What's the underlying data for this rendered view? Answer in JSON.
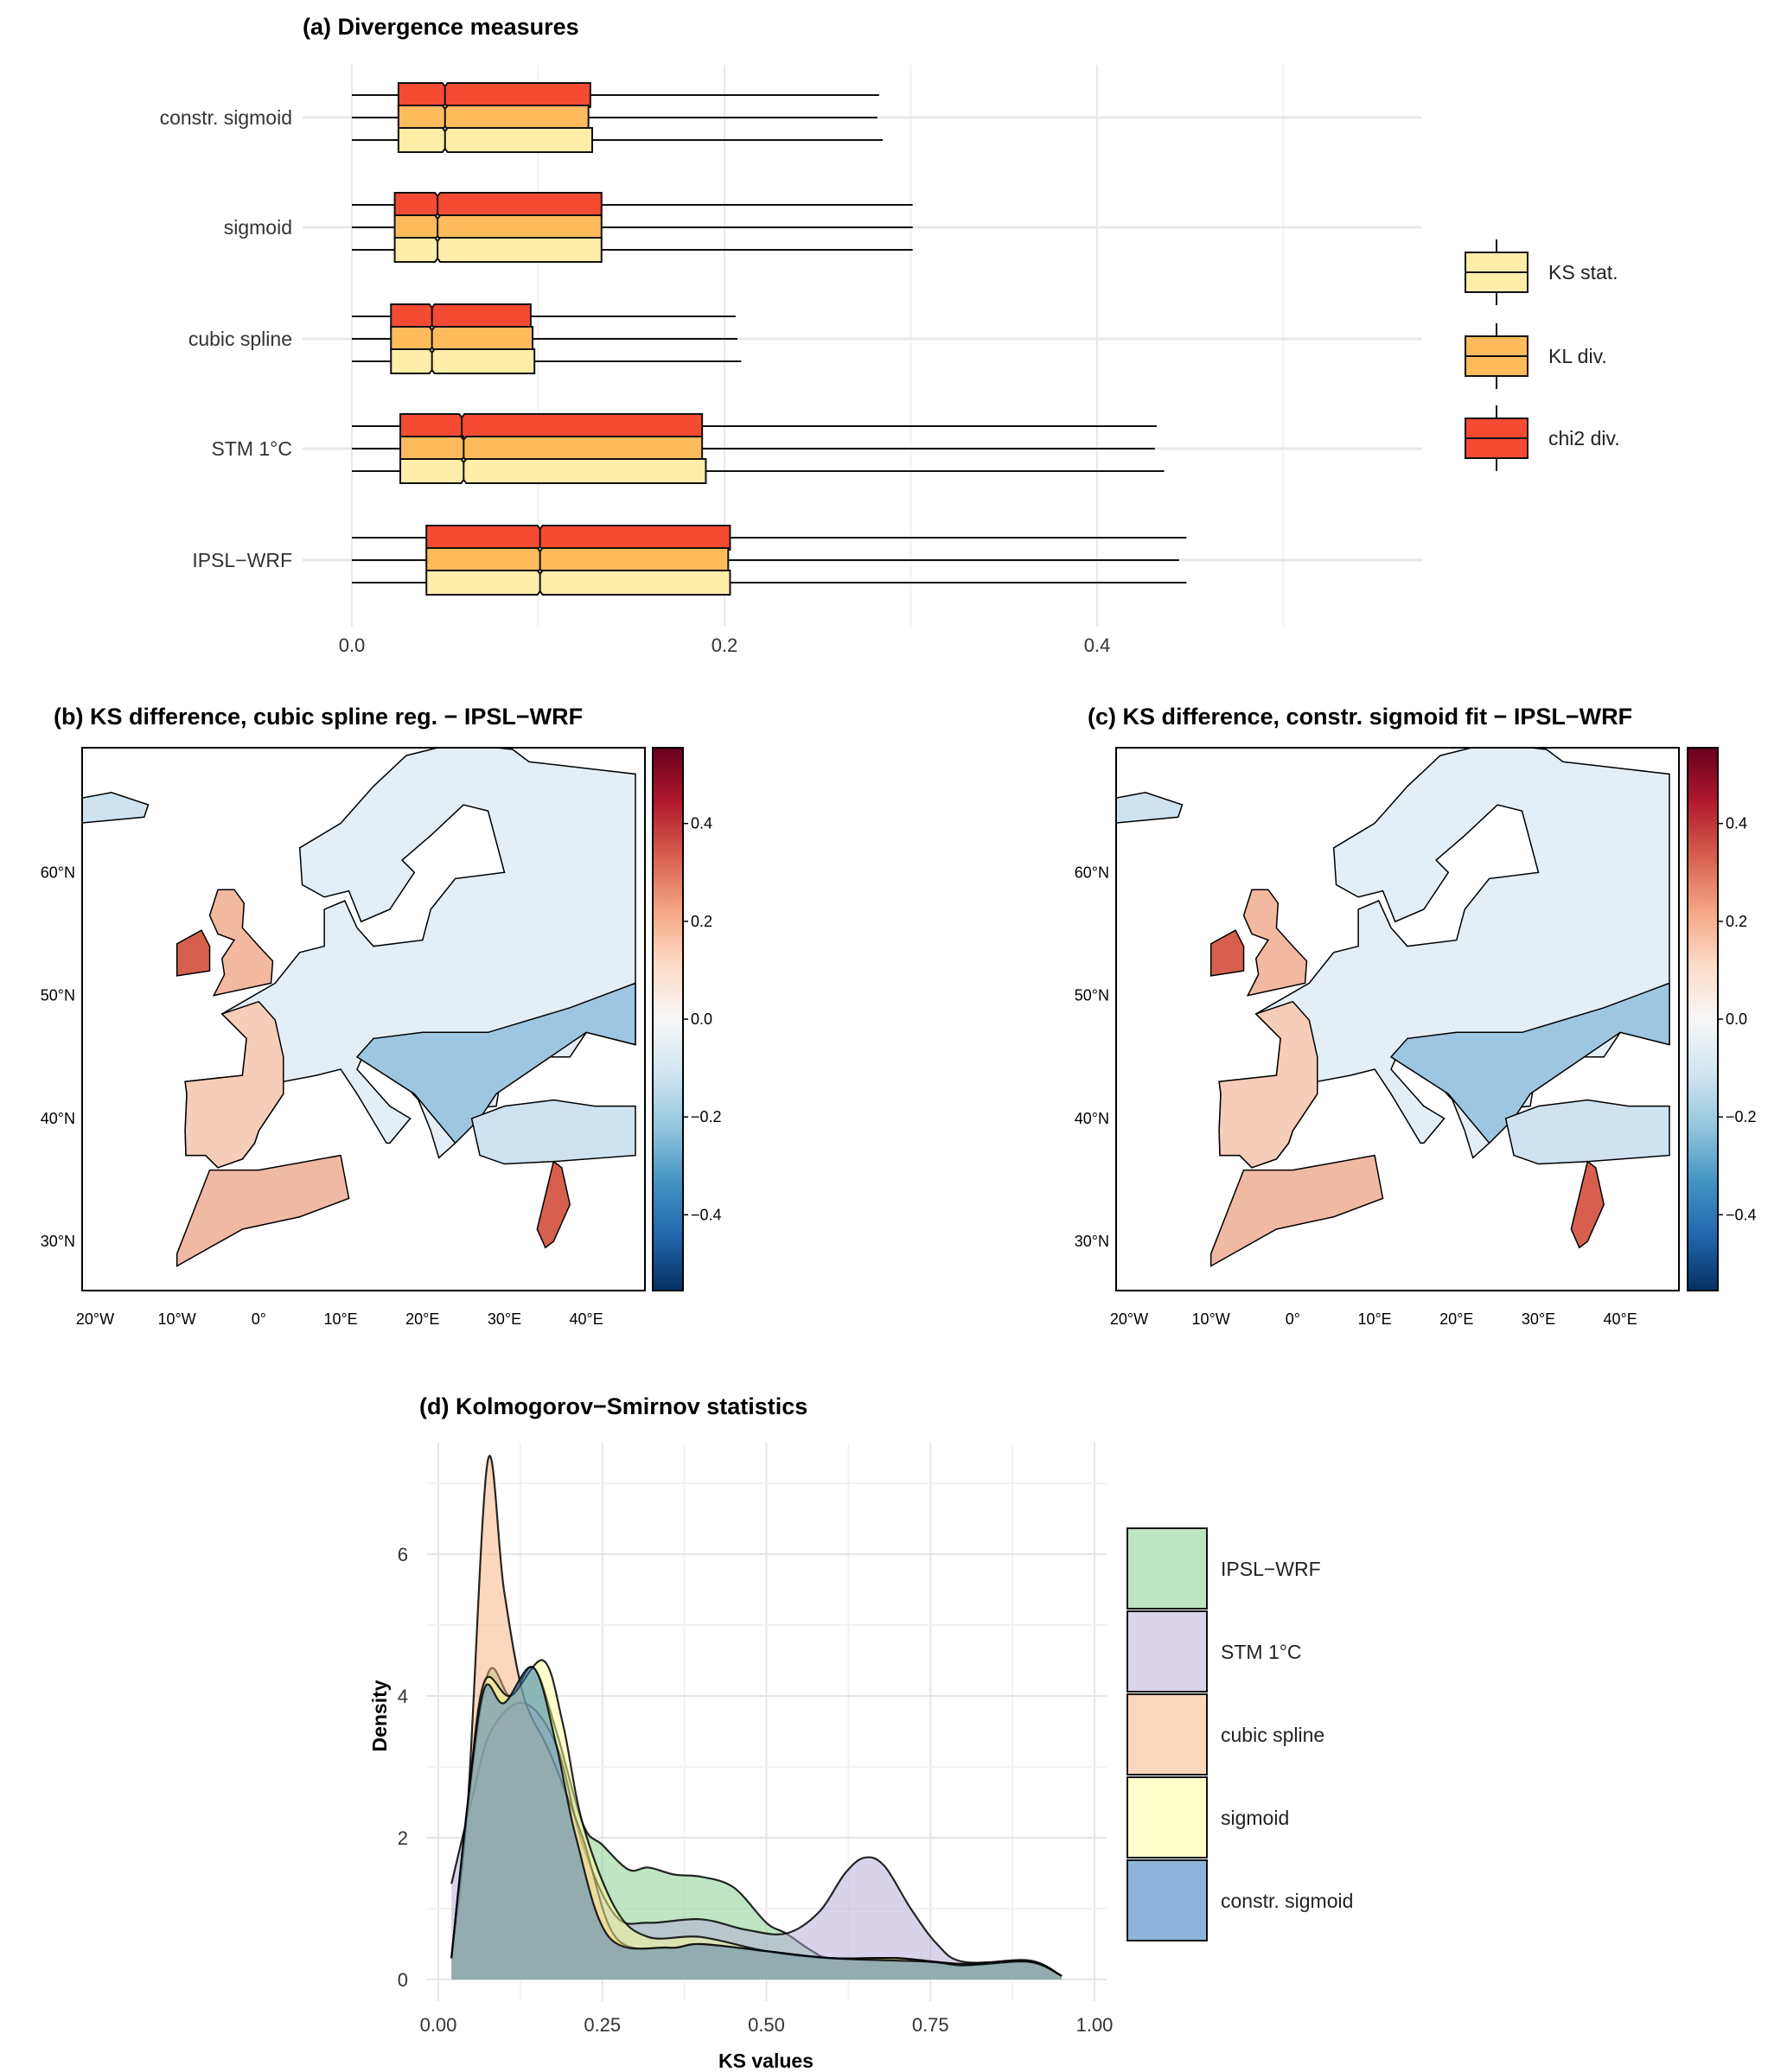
{
  "chart_data": [
    {
      "type": "box",
      "title": "(a) Divergence measures",
      "categories": [
        "constr. sigmoid",
        "sigmoid",
        "cubic spline",
        "STM 1°C",
        "IPSL−WRF"
      ],
      "xlim": [
        0,
        0.575
      ],
      "xticks": [
        {
          "value": 0.0,
          "label": "0.0"
        },
        {
          "value": 0.2,
          "label": "0.2"
        },
        {
          "value": 0.4,
          "label": "0.4"
        }
      ],
      "series": [
        {
          "name": "chi2 div.",
          "color": "#f44b32",
          "boxes": [
            {
              "min": 0,
              "q1": 0.025,
              "median": 0.05,
              "q3": 0.128,
              "max": 0.283
            },
            {
              "min": 0,
              "q1": 0.023,
              "median": 0.046,
              "q3": 0.134,
              "max": 0.301
            },
            {
              "min": 0,
              "q1": 0.021,
              "median": 0.043,
              "q3": 0.096,
              "max": 0.206
            },
            {
              "min": 0,
              "q1": 0.026,
              "median": 0.059,
              "q3": 0.188,
              "max": 0.432
            },
            {
              "min": 0,
              "q1": 0.04,
              "median": 0.101,
              "q3": 0.203,
              "max": 0.448
            }
          ]
        },
        {
          "name": "KL div.",
          "color": "#fdbb5c",
          "boxes": [
            {
              "min": 0,
              "q1": 0.025,
              "median": 0.05,
              "q3": 0.127,
              "max": 0.282
            },
            {
              "min": 0,
              "q1": 0.023,
              "median": 0.046,
              "q3": 0.134,
              "max": 0.301
            },
            {
              "min": 0,
              "q1": 0.021,
              "median": 0.043,
              "q3": 0.097,
              "max": 0.207
            },
            {
              "min": 0,
              "q1": 0.026,
              "median": 0.06,
              "q3": 0.188,
              "max": 0.431
            },
            {
              "min": 0,
              "q1": 0.04,
              "median": 0.101,
              "q3": 0.202,
              "max": 0.444
            }
          ]
        },
        {
          "name": "KS stat.",
          "color": "#ffedaa",
          "boxes": [
            {
              "min": 0,
              "q1": 0.025,
              "median": 0.05,
              "q3": 0.129,
              "max": 0.285
            },
            {
              "min": 0,
              "q1": 0.023,
              "median": 0.046,
              "q3": 0.134,
              "max": 0.301
            },
            {
              "min": 0,
              "q1": 0.021,
              "median": 0.043,
              "q3": 0.098,
              "max": 0.209
            },
            {
              "min": 0,
              "q1": 0.026,
              "median": 0.06,
              "q3": 0.19,
              "max": 0.436
            },
            {
              "min": 0,
              "q1": 0.04,
              "median": 0.101,
              "q3": 0.203,
              "max": 0.448
            }
          ]
        }
      ],
      "legend": [
        "KS stat.",
        "KL div.",
        "chi2 div."
      ],
      "legend_position": "right"
    },
    {
      "type": "area",
      "title": "(d) Kolmogorov−Smirnov statistics",
      "xlabel": "KS values",
      "ylabel": "Density",
      "xlim": [
        -0.025,
        1.025
      ],
      "ylim": [
        -0.3,
        7.5
      ],
      "xticks": [
        {
          "value": 0,
          "label": "0.00"
        },
        {
          "value": 0.25,
          "label": "0.25"
        },
        {
          "value": 0.5,
          "label": "0.50"
        },
        {
          "value": 0.75,
          "label": "0.75"
        },
        {
          "value": 1.0,
          "label": "1.00"
        }
      ],
      "yticks": [
        {
          "value": 0,
          "label": "0"
        },
        {
          "value": 2,
          "label": "2"
        },
        {
          "value": 4,
          "label": "4"
        },
        {
          "value": 6,
          "label": "6"
        }
      ],
      "legend_position": "right",
      "series": [
        {
          "name": "IPSL−WRF",
          "color": "#7fcc85",
          "legend_color": "#bde5bf",
          "x": [
            0.02,
            0.04,
            0.075,
            0.11,
            0.145,
            0.18,
            0.22,
            0.25,
            0.29,
            0.32,
            0.36,
            0.4,
            0.45,
            0.5,
            0.53,
            0.57,
            0.6,
            0.7,
            0.8,
            0.9,
            0.95
          ],
          "y": [
            0.3,
            2.0,
            4.3,
            4.0,
            4.4,
            3.5,
            2.2,
            1.9,
            1.55,
            1.58,
            1.48,
            1.45,
            1.3,
            0.8,
            0.65,
            0.4,
            0.3,
            0.3,
            0.22,
            0.26,
            0.05
          ]
        },
        {
          "name": " STM 1°C",
          "color": "#b3a8d4",
          "legend_color": "#d9d4ea",
          "x": [
            0.02,
            0.05,
            0.08,
            0.13,
            0.18,
            0.22,
            0.27,
            0.32,
            0.4,
            0.47,
            0.53,
            0.58,
            0.62,
            0.65,
            0.68,
            0.72,
            0.76,
            0.8,
            0.9,
            0.95
          ],
          "y": [
            1.35,
            2.5,
            3.5,
            3.9,
            3.3,
            1.9,
            0.9,
            0.8,
            0.85,
            0.7,
            0.65,
            0.95,
            1.5,
            1.72,
            1.6,
            1.0,
            0.5,
            0.25,
            0.25,
            0.05
          ]
        },
        {
          "name": "cubic spline",
          "color": "#f8b07b",
          "legend_color": "#fbd7bd",
          "x": [
            0.02,
            0.045,
            0.075,
            0.1,
            0.13,
            0.17,
            0.22,
            0.27,
            0.35,
            0.4,
            0.5,
            0.6,
            0.7,
            0.8,
            0.9,
            0.95
          ],
          "y": [
            0.3,
            2.5,
            7.3,
            5.5,
            4.0,
            3.2,
            2.0,
            0.6,
            0.45,
            0.5,
            0.4,
            0.3,
            0.3,
            0.2,
            0.25,
            0.05
          ]
        },
        {
          "name": "sigmoid",
          "color": "#ffff99",
          "legend_color": "#ffffcc",
          "x": [
            0.02,
            0.045,
            0.07,
            0.11,
            0.16,
            0.19,
            0.22,
            0.27,
            0.32,
            0.4,
            0.5,
            0.6,
            0.7,
            0.8,
            0.9,
            0.95
          ],
          "y": [
            0.3,
            2.5,
            4.2,
            4.0,
            4.5,
            3.6,
            2.2,
            1.0,
            0.6,
            0.6,
            0.4,
            0.3,
            0.3,
            0.22,
            0.27,
            0.05
          ]
        },
        {
          "name": "constr. sigmoid",
          "color": "#3a7bbf",
          "legend_color": "#8fb4d9",
          "x": [
            0.02,
            0.045,
            0.07,
            0.1,
            0.145,
            0.18,
            0.21,
            0.26,
            0.35,
            0.4,
            0.5,
            0.6,
            0.75,
            0.8,
            0.9,
            0.95
          ],
          "y": [
            0.3,
            2.5,
            4.1,
            3.9,
            4.4,
            3.3,
            2.0,
            0.6,
            0.45,
            0.5,
            0.4,
            0.3,
            0.25,
            0.2,
            0.25,
            0.05
          ]
        }
      ]
    }
  ],
  "maps": [
    {
      "title": "(b) KS difference, cubic spline reg. − IPSL−WRF"
    },
    {
      "title": "(c) KS difference, constr. sigmoid fit − IPSL−WRF"
    }
  ],
  "map_axes": {
    "lat_labels": [
      {
        "value": 60,
        "label": "60°N"
      },
      {
        "value": 50,
        "label": "50°N"
      },
      {
        "value": 40,
        "label": "40°N"
      },
      {
        "value": 30,
        "label": "30°N"
      }
    ],
    "lon_labels": [
      {
        "value": -20,
        "label": "20°W"
      },
      {
        "value": -10,
        "label": "10°W"
      },
      {
        "value": 0,
        "label": "0°"
      },
      {
        "value": 10,
        "label": "10°E"
      },
      {
        "value": 20,
        "label": "20°E"
      },
      {
        "value": 30,
        "label": "30°E"
      },
      {
        "value": 40,
        "label": "40°E"
      }
    ],
    "colorbar_range": [
      -0.555,
      0.555
    ],
    "colorbar_ticks": [
      {
        "value": 0.4,
        "label": "0.4"
      },
      {
        "value": 0.2,
        "label": "0.2"
      },
      {
        "value": 0.0,
        "label": "0.0"
      },
      {
        "value": -0.2,
        "label": "−0.2"
      },
      {
        "value": -0.4,
        "label": "−0.4"
      }
    ],
    "colorbar_colors": [
      "#67001f",
      "#b2182b",
      "#d6604d",
      "#f4a582",
      "#fddbc7",
      "#f7f7f7",
      "#d1e5f0",
      "#92c5de",
      "#4393c3",
      "#2166ac",
      "#053061"
    ]
  }
}
